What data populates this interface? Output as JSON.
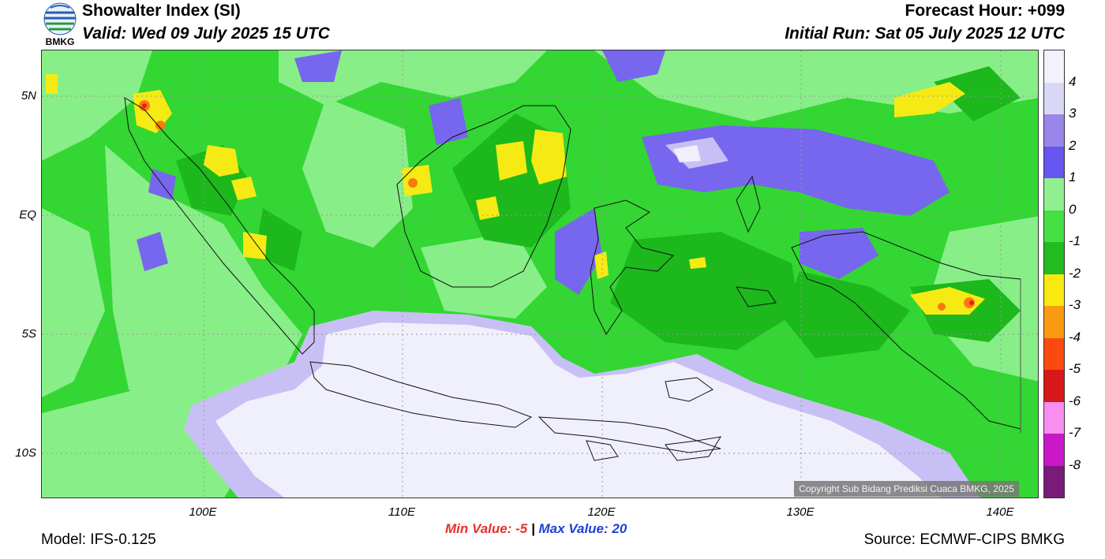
{
  "header": {
    "title": "Showalter Index (SI)",
    "valid": "Valid: Wed 09 July 2025 15 UTC",
    "forecast_hour": "Forecast Hour: +099",
    "initial_run": "Initial Run: Sat 05 July 2025 12 UTC"
  },
  "logo": {
    "text": "BMKG",
    "icon": "bmkg-logo"
  },
  "map": {
    "lat_labels": [
      "5N",
      "EQ",
      "5S",
      "10S"
    ],
    "lon_labels": [
      "100E",
      "110E",
      "120E",
      "130E",
      "140E"
    ],
    "copyright": "Copyright Sub Bidang Prediksi Cuaca BMKG, 2025"
  },
  "colorbar": {
    "labels": [
      "4",
      "3",
      "2",
      "1",
      "0",
      "-1",
      "-2",
      "-3",
      "-4",
      "-5",
      "-6",
      "-7",
      "-8"
    ],
    "colors": [
      "#f2f2fc",
      "#d8d8f6",
      "#9a86ea",
      "#6655ee",
      "#90f090",
      "#44e044",
      "#22bb22",
      "#f8ea10",
      "#fa9a10",
      "#fa4a10",
      "#d81818",
      "#f88ef0",
      "#c818c8",
      "#7a1a7a"
    ]
  },
  "stats": {
    "min_label": "Min Value:",
    "min_value": "-5",
    "separator": "|",
    "max_label": "Max Value:",
    "max_value": "20"
  },
  "footer": {
    "model": "Model: IFS-0.125",
    "source": "Source: ECMWF-CIPS BMKG"
  }
}
